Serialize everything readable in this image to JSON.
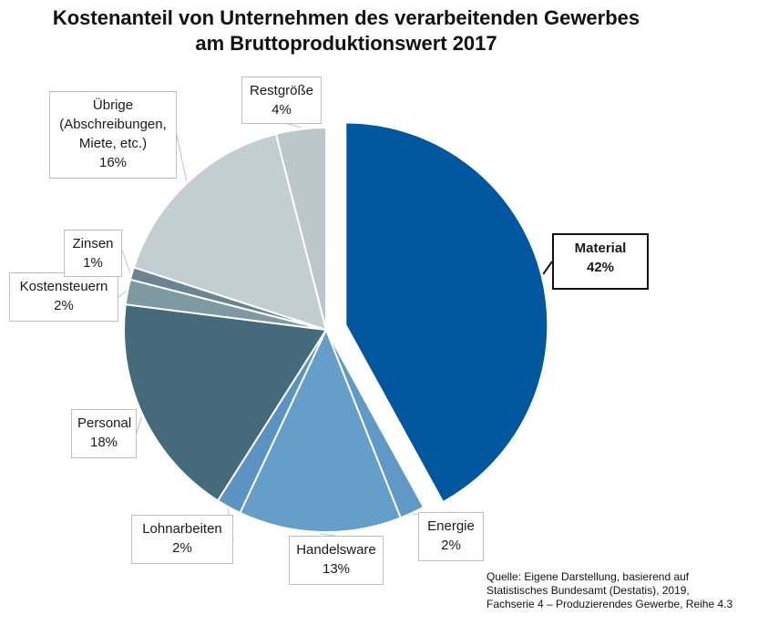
{
  "chart_data": {
    "type": "pie",
    "title_lines": [
      "Kostenanteil von Unternehmen des verarbeitenden Gewerbes",
      "am Bruttoproduktionswert 2017"
    ],
    "unit": "%",
    "slices": [
      {
        "label": "Material",
        "label_lines": [
          "Material"
        ],
        "value": 42,
        "value_text": "42%",
        "color": "#00579d",
        "exploded": true
      },
      {
        "label": "Energie",
        "label_lines": [
          "Energie"
        ],
        "value": 2,
        "value_text": "2%",
        "color": "#5f99c6",
        "exploded": false
      },
      {
        "label": "Handelsware",
        "label_lines": [
          "Handelsware"
        ],
        "value": 13,
        "value_text": "13%",
        "color": "#649ec9",
        "exploded": false
      },
      {
        "label": "Lohnarbeiten",
        "label_lines": [
          "Lohnarbeiten"
        ],
        "value": 2,
        "value_text": "2%",
        "color": "#5b93c2",
        "exploded": false
      },
      {
        "label": "Personal",
        "label_lines": [
          "Personal"
        ],
        "value": 18,
        "value_text": "18%",
        "color": "#456a7c",
        "exploded": false
      },
      {
        "label": "Kostensteuern",
        "label_lines": [
          "Kostensteuern"
        ],
        "value": 2,
        "value_text": "2%",
        "color": "#7f99a3",
        "exploded": false
      },
      {
        "label": "Zinsen",
        "label_lines": [
          "Zinsen"
        ],
        "value": 1,
        "value_text": "1%",
        "color": "#6a8591",
        "exploded": false
      },
      {
        "label": "Übrige (Abschreibungen, Miete, etc.)",
        "label_lines": [
          "Übrige",
          "(Abschreibungen,",
          "Miete, etc.)"
        ],
        "value": 16,
        "value_text": "16%",
        "color": "#c3ced3",
        "exploded": false
      },
      {
        "label": "Restgröße",
        "label_lines": [
          "Restgröße"
        ],
        "value": 4,
        "value_text": "4%",
        "color": "#bcc7cc",
        "exploded": false
      }
    ],
    "source_lines": [
      "Quelle: Eigene Darstellung, basierend auf",
      "Statistisches Bundesamt (Destatis), 2019,",
      "Fachserie 4 – Produzierendes Gewerbe, Reihe 4.3"
    ],
    "legend": "none",
    "highlighted_slice": "Material"
  }
}
